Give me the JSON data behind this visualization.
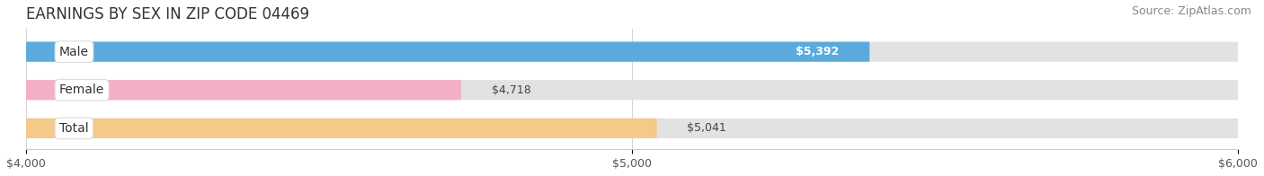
{
  "title": "EARNINGS BY SEX IN ZIP CODE 04469",
  "source": "Source: ZipAtlas.com",
  "categories": [
    "Male",
    "Female",
    "Total"
  ],
  "values": [
    5392,
    4718,
    5041
  ],
  "bar_colors": [
    "#5aabdc",
    "#f4afc8",
    "#f5c98a"
  ],
  "bar_bg_color": "#e2e2e2",
  "xlim": [
    4000,
    6000
  ],
  "xticks": [
    4000,
    5000,
    6000
  ],
  "xtick_labels": [
    "$4,000",
    "$5,000",
    "$6,000"
  ],
  "value_labels": [
    "$5,392",
    "$4,718",
    "$5,041"
  ],
  "value_inside": [
    true,
    false,
    false
  ],
  "title_fontsize": 12,
  "source_fontsize": 9,
  "tick_fontsize": 9,
  "bar_label_fontsize": 9,
  "category_fontsize": 10,
  "background_color": "#ffffff"
}
